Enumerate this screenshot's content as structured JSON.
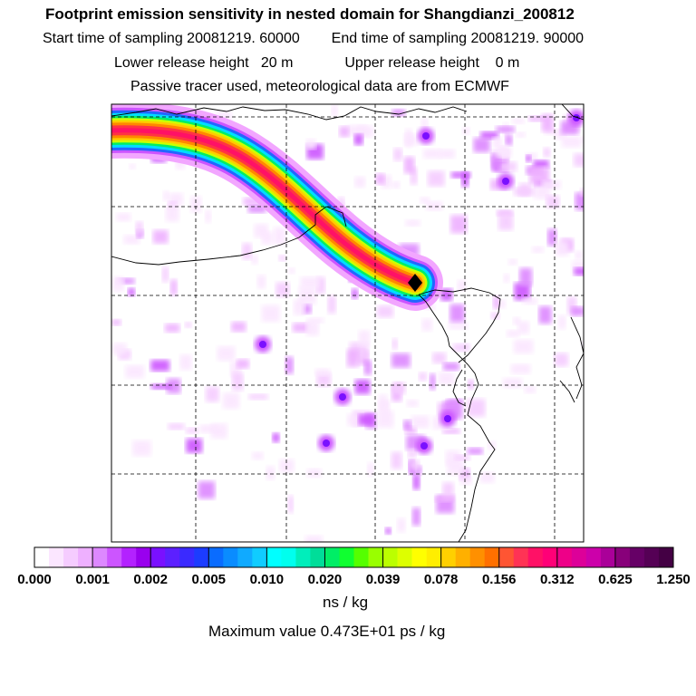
{
  "header": {
    "title": "Footprint emission sensitivity in nested domain for Shangdianzi_200812",
    "start_label": "Start time of sampling 20081219. 60000",
    "end_label": "End time of sampling 20081219. 90000",
    "lower_label": "Lower release height   20 m",
    "upper_label": "Upper release height    0 m",
    "tracer_label": "Passive tracer used, meteorological data are from ECMWF"
  },
  "colorbar": {
    "units": "ns / kg",
    "tick_labels": [
      "0.000",
      "0.001",
      "0.002",
      "0.005",
      "0.010",
      "0.020",
      "0.039",
      "0.078",
      "0.156",
      "0.312",
      "0.625",
      "1.250"
    ],
    "colors": [
      "#ffffff",
      "#fbe6ff",
      "#f5ccff",
      "#eeb0ff",
      "#dd88ff",
      "#cc55ff",
      "#b322ff",
      "#9900ee",
      "#7a10ff",
      "#5c20ff",
      "#3a2aff",
      "#1c3cff",
      "#0a6cff",
      "#0a8cff",
      "#10aaff",
      "#10ccff",
      "#00ffff",
      "#00ffee",
      "#00eebb",
      "#00dd99",
      "#00ee66",
      "#10ff30",
      "#55ff00",
      "#99ff00",
      "#bbff00",
      "#ddff00",
      "#ffff00",
      "#ffee00",
      "#ffd000",
      "#ffb000",
      "#ff9000",
      "#ff7000",
      "#ff5533",
      "#ff3355",
      "#ff1166",
      "#ff0077",
      "#ee0088",
      "#dd0099",
      "#cc00aa",
      "#aa0099",
      "#88007a",
      "#660066",
      "#550055",
      "#440044"
    ]
  },
  "footer": {
    "max_value": "Maximum value  0.473E+01 ps / kg"
  },
  "map": {
    "site_marker": "release-site-diamond",
    "plume_colors": [
      "#ff00ff",
      "#0090ff",
      "#00ffff",
      "#00ff66",
      "#ffff00",
      "#ff9900",
      "#ff3333",
      "#ff1166"
    ]
  }
}
